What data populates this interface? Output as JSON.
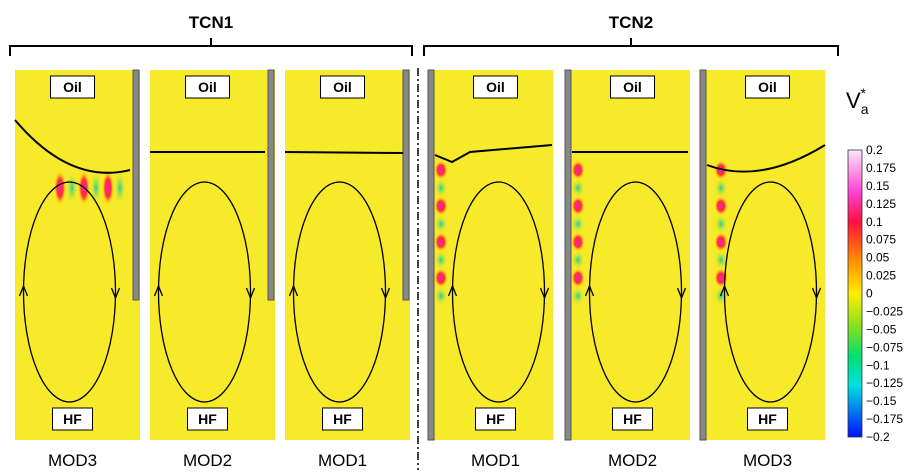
{
  "groups": [
    {
      "label": "TCN1"
    },
    {
      "label": "TCN2"
    }
  ],
  "panels": [
    {
      "top": "Oil",
      "bottom": "HF",
      "caption": "MOD3"
    },
    {
      "top": "Oil",
      "bottom": "HF",
      "caption": "MOD2"
    },
    {
      "top": "Oil",
      "bottom": "HF",
      "caption": "MOD1"
    },
    {
      "top": "Oil",
      "bottom": "HF",
      "caption": "MOD1"
    },
    {
      "top": "Oil",
      "bottom": "HF",
      "caption": "MOD2"
    },
    {
      "top": "Oil",
      "bottom": "HF",
      "caption": "MOD3"
    }
  ],
  "colorbar": {
    "title": "V",
    "subscript": "a",
    "superscript": "*",
    "labels": [
      "0.2",
      "0.175",
      "0.15",
      "0.125",
      "0.1",
      "0.075",
      "0.05",
      "0.025",
      "0",
      "−0.025",
      "−0.05",
      "−0.075",
      "−0.1",
      "−0.125",
      "−0.15",
      "−0.175",
      "−0.2"
    ]
  }
}
